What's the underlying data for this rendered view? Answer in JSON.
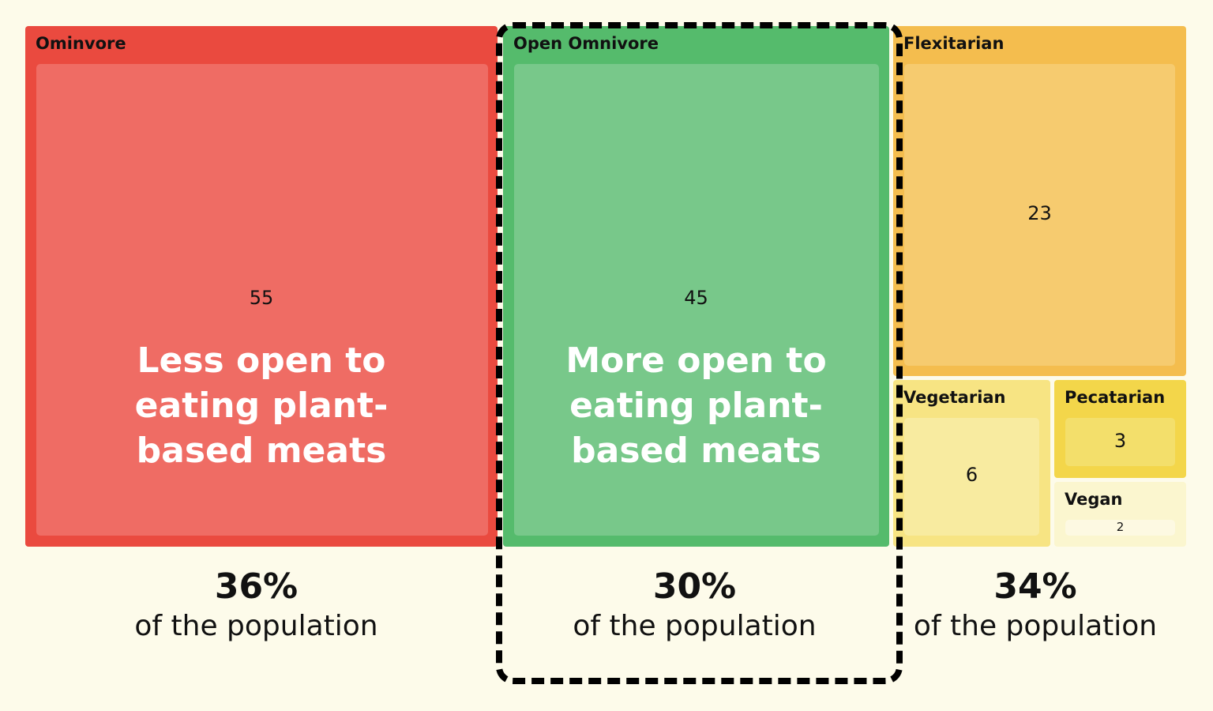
{
  "chart_data": {
    "type": "treemap",
    "groups": [
      {
        "name": "Ominvore",
        "value": 55,
        "color": "#ea4a3f",
        "inner_color": "#ef6c64",
        "annotation": "Less open to eating plant-based meats",
        "share": "36%",
        "share_label": "of the population"
      },
      {
        "name": "Open Omnivore",
        "value": 45,
        "color": "#55bb6c",
        "inner_color": "#78c88a",
        "annotation": "More open to eating plant-based meats",
        "share": "30%",
        "share_label": "of the population",
        "highlighted": true
      },
      {
        "name": "Flexitarian",
        "value": 23,
        "color": "#f4bd4e",
        "inner_color": "#f6cb6f"
      },
      {
        "name": "Vegetarian",
        "value": 6,
        "color": "#f7e483",
        "inner_color": "#f8eba0"
      },
      {
        "name": "Pecatarian",
        "value": 3,
        "color": "#f3d64a",
        "inner_color": "#f3df6b"
      },
      {
        "name": "Vegan",
        "value": 2,
        "color": "#fbf6cf",
        "inner_color": "#fdf9e2"
      }
    ],
    "right_share": {
      "share": "34%",
      "share_label": "of the population"
    }
  }
}
